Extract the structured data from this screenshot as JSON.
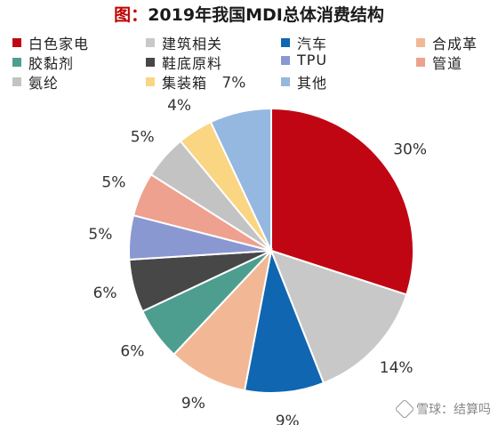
{
  "title_prefix": "图：",
  "title_main": "2019年我国MDI总体消费结构",
  "watermark": "雪球：结算吗",
  "chart_data": {
    "type": "pie",
    "title": "图：2019年我国MDI总体消费结构",
    "legend_placement": "top",
    "slices": [
      {
        "label": "白色家电",
        "value": 30,
        "color": "#C00613",
        "text": "30%"
      },
      {
        "label": "建筑相关",
        "value": 14,
        "color": "#C8C8C8",
        "text": "14%"
      },
      {
        "label": "汽车",
        "value": 9,
        "color": "#1066B0",
        "text": "9%"
      },
      {
        "label": "合成革",
        "value": 9,
        "color": "#F2B896",
        "text": "9%"
      },
      {
        "label": "胶黏剂",
        "value": 6,
        "color": "#4E9E90",
        "text": "6%"
      },
      {
        "label": "鞋底原料",
        "value": 6,
        "color": "#474747",
        "text": "6%"
      },
      {
        "label": "TPU",
        "value": 5,
        "color": "#8A98D2",
        "text": "5%"
      },
      {
        "label": "管道",
        "value": 5,
        "color": "#EDA18E",
        "text": "5%"
      },
      {
        "label": "氨纶",
        "value": 5,
        "color": "#C3C3C3",
        "text": "5%"
      },
      {
        "label": "集装箱",
        "value": 4,
        "color": "#FAD582",
        "text": "4%"
      },
      {
        "label": "其他",
        "value": 7,
        "color": "#95B8E0",
        "text": "7%"
      }
    ]
  }
}
